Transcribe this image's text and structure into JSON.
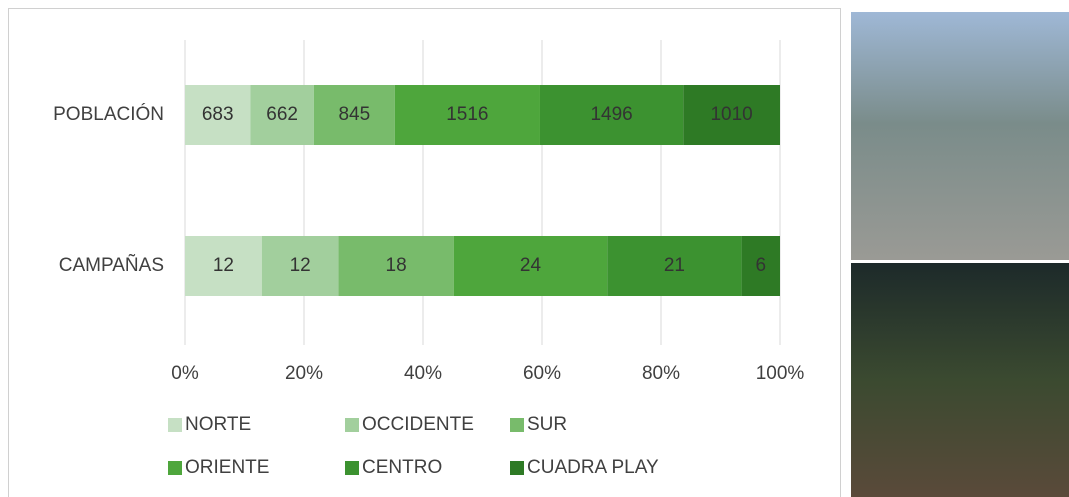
{
  "chart_data": {
    "type": "bar",
    "orientation": "horizontal",
    "stacked": "percent",
    "categories": [
      "POBLACIÓN",
      "CAMPAÑAS"
    ],
    "series": [
      {
        "name": "NORTE",
        "color": "#c6e0c4",
        "values": [
          683,
          12
        ]
      },
      {
        "name": "OCCIDENTE",
        "color": "#a2cf9d",
        "values": [
          662,
          12
        ]
      },
      {
        "name": "SUR",
        "color": "#78bb6b",
        "values": [
          845,
          18
        ]
      },
      {
        "name": "ORIENTE",
        "color": "#4ea63c",
        "values": [
          1516,
          24
        ]
      },
      {
        "name": "CENTRO",
        "color": "#3c9230",
        "values": [
          1496,
          21
        ]
      },
      {
        "name": "CUADRA PLAY",
        "color": "#2e7a25",
        "values": [
          1010,
          6
        ]
      }
    ],
    "xlim": [
      0,
      100
    ],
    "xticks": [
      {
        "value": 0,
        "label": "0%"
      },
      {
        "value": 20,
        "label": "20%"
      },
      {
        "value": 40,
        "label": "40%"
      },
      {
        "value": 60,
        "label": "60%"
      },
      {
        "value": 80,
        "label": "80%"
      },
      {
        "value": 100,
        "label": "100%"
      }
    ],
    "grid": true,
    "legend": "bottom"
  }
}
